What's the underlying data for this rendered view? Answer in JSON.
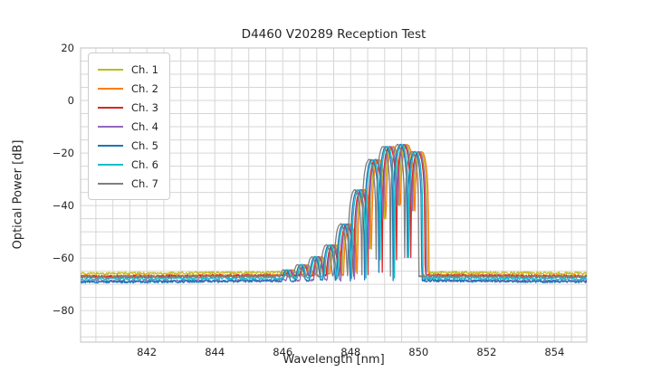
{
  "figure": {
    "title": "D4460 V20289 Reception Test",
    "xlabel": "Wavelength [nm]",
    "ylabel": "Optical Power [dB]",
    "background_color": "#ffffff",
    "grid_color": "#d6d6d6",
    "border_color": "#cccccc",
    "text_color": "#262626"
  },
  "chart_data": {
    "type": "line",
    "title": "D4460 V20289 Reception Test",
    "xlabel": "Wavelength [nm]",
    "ylabel": "Optical Power [dB]",
    "xlim": [
      840.05,
      854.95
    ],
    "ylim": [
      -92,
      20
    ],
    "x_ticks": [
      842,
      844,
      846,
      848,
      850,
      852,
      854
    ],
    "y_ticks": [
      20,
      0,
      -20,
      -40,
      -60,
      -80
    ],
    "x_minor_step_nm": 0.5,
    "y_minor_step_db": 5,
    "grid": "both-minor-and-major",
    "legend_position": "upper-left",
    "description": "Optical spectra of 7 channels: flat noise floor near -66 to -69 dB, multimode emission lobes between ~846 and ~850.3 nm peaking near -17 dB, steep cutoff after 850 nm.",
    "mode_comb": {
      "spacing_nm": 0.42,
      "centers_nm": [
        846.1,
        846.52,
        846.94,
        847.36,
        847.78,
        848.2,
        848.62,
        849.04,
        849.46,
        849.88
      ],
      "peak_envelope_db": [
        -64.5,
        -62.5,
        -59.5,
        -55.0,
        -47.0,
        -34.0,
        -22.5,
        -17.5,
        -16.8,
        -19.5
      ],
      "notch_floor_rel_db": -43
    },
    "baseline_bump_db": 0.6,
    "baseline_bump_center_nm": 848.3,
    "noise_db_pp": 1.0,
    "sample_step_nm": 0.02,
    "series": [
      {
        "name": "Ch. 1",
        "color": "#bcbd22",
        "offset_nm": 0.17,
        "baseline_db": -65.9
      },
      {
        "name": "Ch. 2",
        "color": "#ff7f0e",
        "offset_nm": 0.21,
        "baseline_db": -66.9
      },
      {
        "name": "Ch. 3",
        "color": "#d62728",
        "offset_nm": 0.1,
        "baseline_db": -67.1
      },
      {
        "name": "Ch. 4",
        "color": "#9467bd",
        "offset_nm": 0.13,
        "baseline_db": -68.9
      },
      {
        "name": "Ch. 5",
        "color": "#1f77b4",
        "offset_nm": 0.0,
        "baseline_db": -69.1
      },
      {
        "name": "Ch. 6",
        "color": "#17becf",
        "offset_nm": 0.04,
        "baseline_db": -68.0
      },
      {
        "name": "Ch. 7",
        "color": "#7f7f7f",
        "offset_nm": -0.08,
        "baseline_db": -67.3
      }
    ]
  }
}
